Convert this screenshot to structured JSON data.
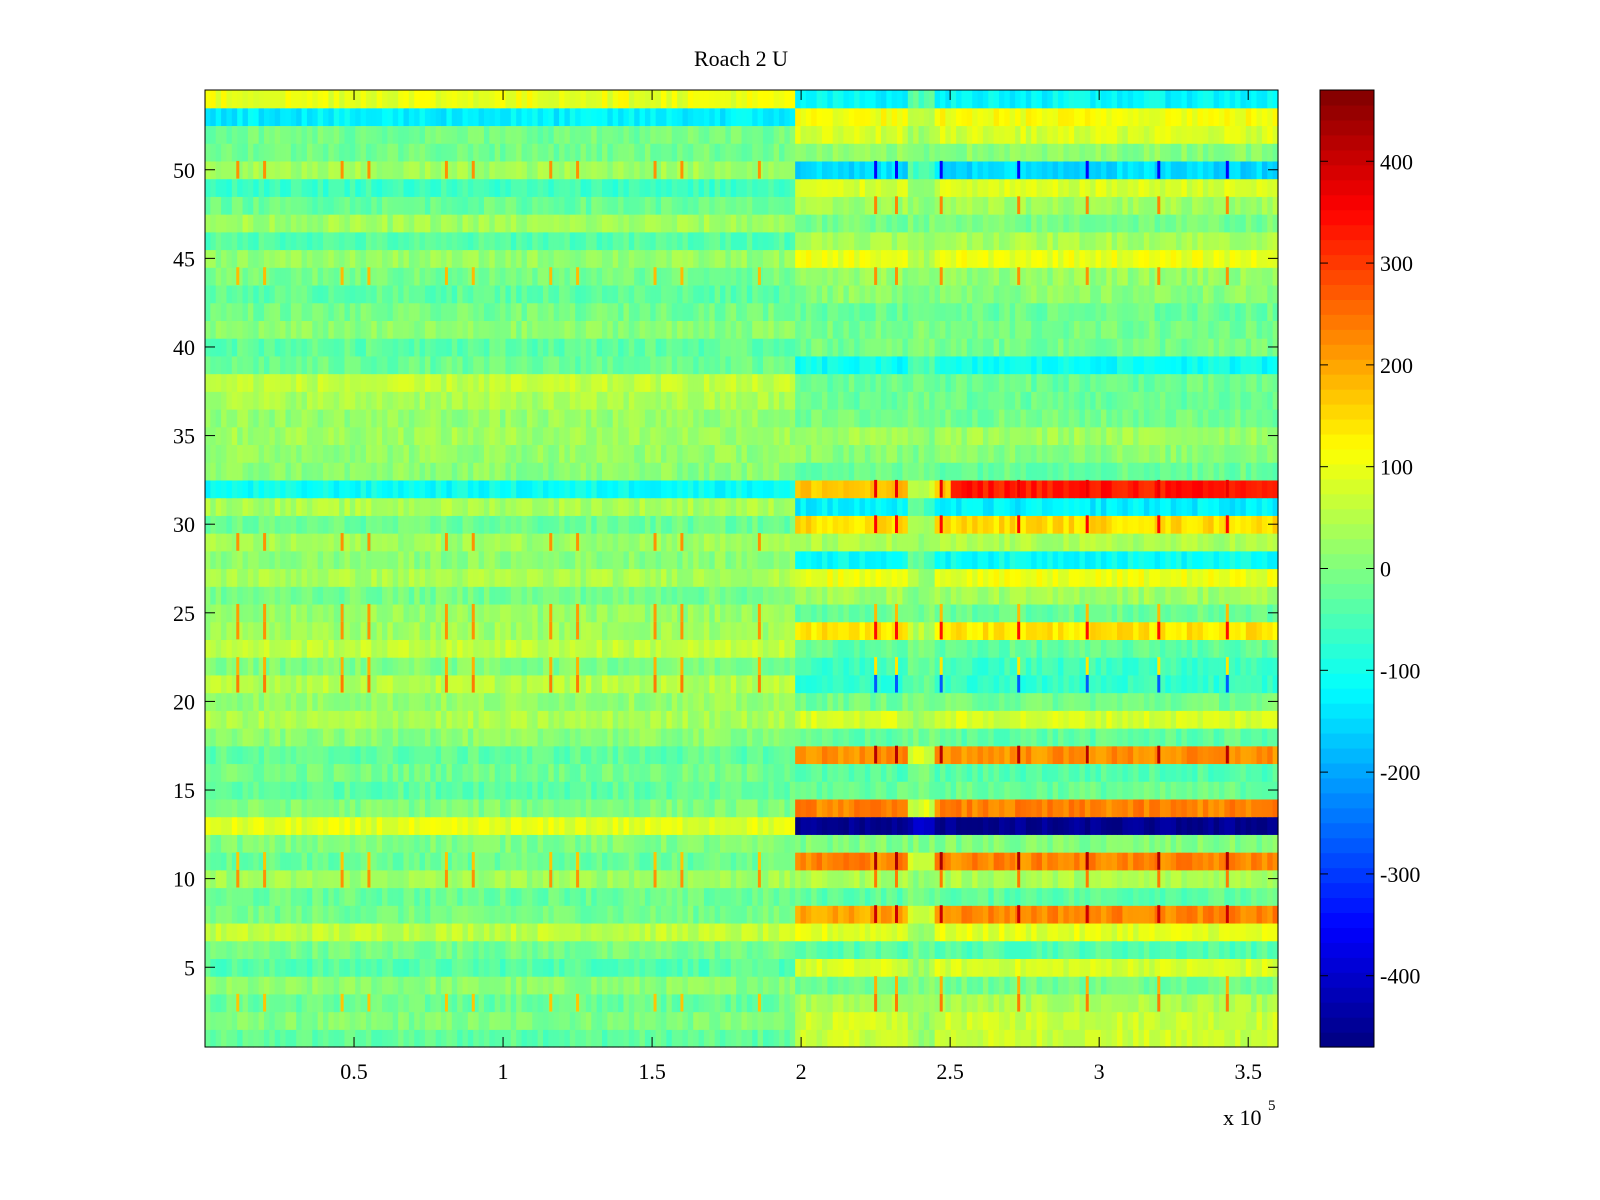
{
  "chart_data": {
    "type": "heatmap",
    "title": "Roach 2 U",
    "xlabel": "",
    "ylabel": "",
    "x_multiplier_label": {
      "base": "x 10",
      "exponent": "5"
    },
    "xlim": [
      0,
      3.6
    ],
    "ylim": [
      0.5,
      54.5
    ],
    "xticks": [
      0.5,
      1,
      1.5,
      2,
      2.5,
      3,
      3.5
    ],
    "xtick_labels": [
      "0.5",
      "1",
      "1.5",
      "2",
      "2.5",
      "3",
      "3.5"
    ],
    "yticks": [
      5,
      10,
      15,
      20,
      25,
      30,
      35,
      40,
      45,
      50
    ],
    "ytick_labels": [
      "5",
      "10",
      "15",
      "20",
      "25",
      "30",
      "35",
      "40",
      "45",
      "50"
    ],
    "rows": 54,
    "colormap": "jet",
    "colorbar": {
      "clim": [
        -470,
        470
      ],
      "ticks": [
        -400,
        -300,
        -200,
        -100,
        0,
        100,
        200,
        300,
        400
      ],
      "tick_labels": [
        "-400",
        "-300",
        "-200",
        "-100",
        "0",
        "100",
        "200",
        "300",
        "400"
      ]
    },
    "transition_x": 1.98,
    "spike_x_left": [
      0.11,
      0.2,
      0.46,
      0.55,
      0.81,
      0.9,
      1.16,
      1.25,
      1.51,
      1.6,
      1.86
    ],
    "spike_x_right": [
      2.25,
      2.32,
      2.47,
      2.73,
      2.96,
      3.2,
      3.43
    ],
    "rows_baseline_left": [
      -30,
      0,
      -20,
      10,
      -40,
      -10,
      60,
      -10,
      -20,
      30,
      -20,
      0,
      90,
      0,
      -30,
      -10,
      -30,
      10,
      40,
      20,
      50,
      0,
      60,
      30,
      20,
      -10,
      40,
      10,
      30,
      -20,
      40,
      -110,
      10,
      20,
      30,
      20,
      40,
      60,
      -20,
      -30,
      10,
      -10,
      -30,
      -10,
      20,
      -40,
      30,
      -20,
      -60,
      30,
      -10,
      -10,
      -130,
      100
    ],
    "rows_baseline_right": [
      70,
      70,
      40,
      -10,
      80,
      -40,
      90,
      200,
      -30,
      40,
      230,
      0,
      -460,
      230,
      -20,
      -40,
      220,
      -30,
      80,
      -10,
      -70,
      -60,
      -30,
      140,
      -20,
      30,
      100,
      -110,
      40,
      150,
      -130,
      170,
      -20,
      10,
      30,
      -10,
      -20,
      -20,
      -110,
      -10,
      -10,
      -20,
      10,
      20,
      100,
      40,
      -10,
      30,
      80,
      -150,
      10,
      80,
      110,
      -120
    ],
    "notable_events": [
      {
        "row": 13,
        "x_start": 2.0,
        "x_end": 3.6,
        "value": -460
      },
      {
        "row": 32,
        "x_start": 2.5,
        "x_end": 3.6,
        "value": 330
      },
      {
        "row": 8,
        "x_start": 2.45,
        "x_end": 3.6,
        "value": 230
      }
    ]
  }
}
